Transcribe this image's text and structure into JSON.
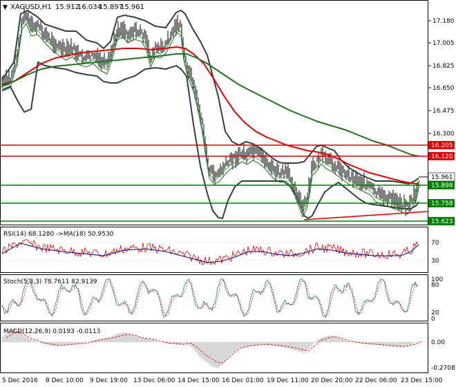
{
  "symbol_header": {
    "symbol": "XAGUSD,H1",
    "open": "15.912",
    "high": "16.034",
    "low": "15.897",
    "close": "15.961"
  },
  "main_axis": {
    "ticks": [
      "17.180",
      "17.005",
      "16.825",
      "16.650",
      "16.475",
      "16.300",
      "15.623"
    ]
  },
  "price_levels": [
    {
      "value": "16.205",
      "type": "resistance",
      "color": "#e00000"
    },
    {
      "value": "16.120",
      "type": "resistance",
      "color": "#e00000"
    },
    {
      "value": "15.961",
      "type": "current",
      "color": "#000000"
    },
    {
      "value": "15.898",
      "type": "support",
      "color": "#008000"
    },
    {
      "value": "15.758",
      "type": "support",
      "color": "#008000"
    },
    {
      "value": "15.623",
      "type": "support",
      "color": "#008000"
    }
  ],
  "rsi": {
    "label": "RSI(14) 68.1280 ->MA(18) 50.9530",
    "ticks": [
      "70",
      "30"
    ]
  },
  "stoch": {
    "label": "Stoch(5,3,3) 78.7611 82.9139",
    "ticks": [
      "100",
      "80",
      "20",
      "0"
    ]
  },
  "macd": {
    "label": "MACD(12,26,9) 0.0193 -0.0113",
    "ticks": [
      "0.00",
      "-0.2708"
    ]
  },
  "time_axis": {
    "labels": [
      "5 Dec 2016",
      "8 Dec 10:00",
      "9 Dec 19:00",
      "13 Dec 06:00",
      "14 Dec 15:00",
      "16 Dec 01:00",
      "19 Dec 11:00",
      "20 Dec 20:00",
      "22 Dec 06:00",
      "23 Dec 15:00"
    ]
  },
  "colors": {
    "price": "#000000",
    "bands": "#2f3f3f",
    "ma_fast": "#3a9a3a",
    "ma_red": "#dd0000",
    "ma_green": "#1f6f1f",
    "rsi": "#dd0000",
    "rsi_ma": "#000080",
    "stoch_k": "#2a8a8a",
    "stoch_d": "#dd0000",
    "macd_hist": "#b0b0b0",
    "macd_signal": "#dd0000"
  }
}
